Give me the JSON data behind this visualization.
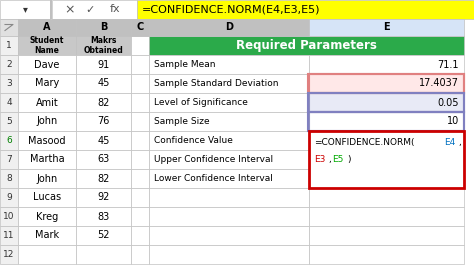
{
  "formula_bar_text": "=CONFIDENCE.NORM(E4,E3,E5)",
  "left_table": {
    "col_a_header": "Student\nName",
    "col_b_header": "Makrs\nObtained",
    "rows": [
      [
        "Dave",
        "91"
      ],
      [
        "Mary",
        "45"
      ],
      [
        "Amit",
        "82"
      ],
      [
        "John",
        "76"
      ],
      [
        "Masood",
        "45"
      ],
      [
        "Martha",
        "63"
      ],
      [
        "John",
        "82"
      ],
      [
        "Lucas",
        "92"
      ],
      [
        "Kreg",
        "83"
      ],
      [
        "Mark",
        "52"
      ]
    ]
  },
  "right_table": {
    "header": "Required Parameters",
    "header_bg": "#2BAA4A",
    "header_fg": "#FFFFFF",
    "rows": [
      {
        "label": "Sample Mean",
        "value": "71.1",
        "value_bg": "#FFFFFF",
        "border_color": null
      },
      {
        "label": "Sample Standard Deviation",
        "value": "17.4037",
        "value_bg": "#FFE8E8",
        "border_color": "#E08080"
      },
      {
        "label": "Level of Significance",
        "value": "0.05",
        "value_bg": "#E8EAF6",
        "border_color": "#9090C0"
      },
      {
        "label": "Sample Size",
        "value": "10",
        "value_bg": "#FFFFFF",
        "border_color": "#9090C0"
      },
      {
        "label": "Confidence Value",
        "value": "",
        "value_bg": "#FFFFFF",
        "border_color": null
      },
      {
        "label": "Upper Confidence Interval",
        "value": "",
        "value_bg": "#FFFFFF",
        "border_color": null
      },
      {
        "label": "Lower Confidence Interval",
        "value": "",
        "value_bg": "#FFFFFF",
        "border_color": null
      }
    ]
  },
  "formula_bar_bg": "#FFFF00",
  "excel_bg": "#FFFFFF",
  "grid_color": "#C0C0C0",
  "header_col_bg": "#C0C0C0",
  "row_num_bg": "#F2F2F2",
  "row_num_color_6": "#008000",
  "selected_e_bg": "#D6E4F7",
  "formula_box_line1": "=CONFIDENCE.NORM(E4,",
  "formula_box_line2_parts": [
    "E3",
    ",",
    "E5",
    ")"
  ],
  "formula_box_colors": [
    "#CC0000",
    "#000000",
    "#00AA00",
    "#000000"
  ],
  "formula_box_line1_parts": [
    "=CONFIDENCE.NORM(",
    "E4",
    ","
  ],
  "formula_box_line1_colors": [
    "#000000",
    "#0070C0",
    "#000000"
  ]
}
